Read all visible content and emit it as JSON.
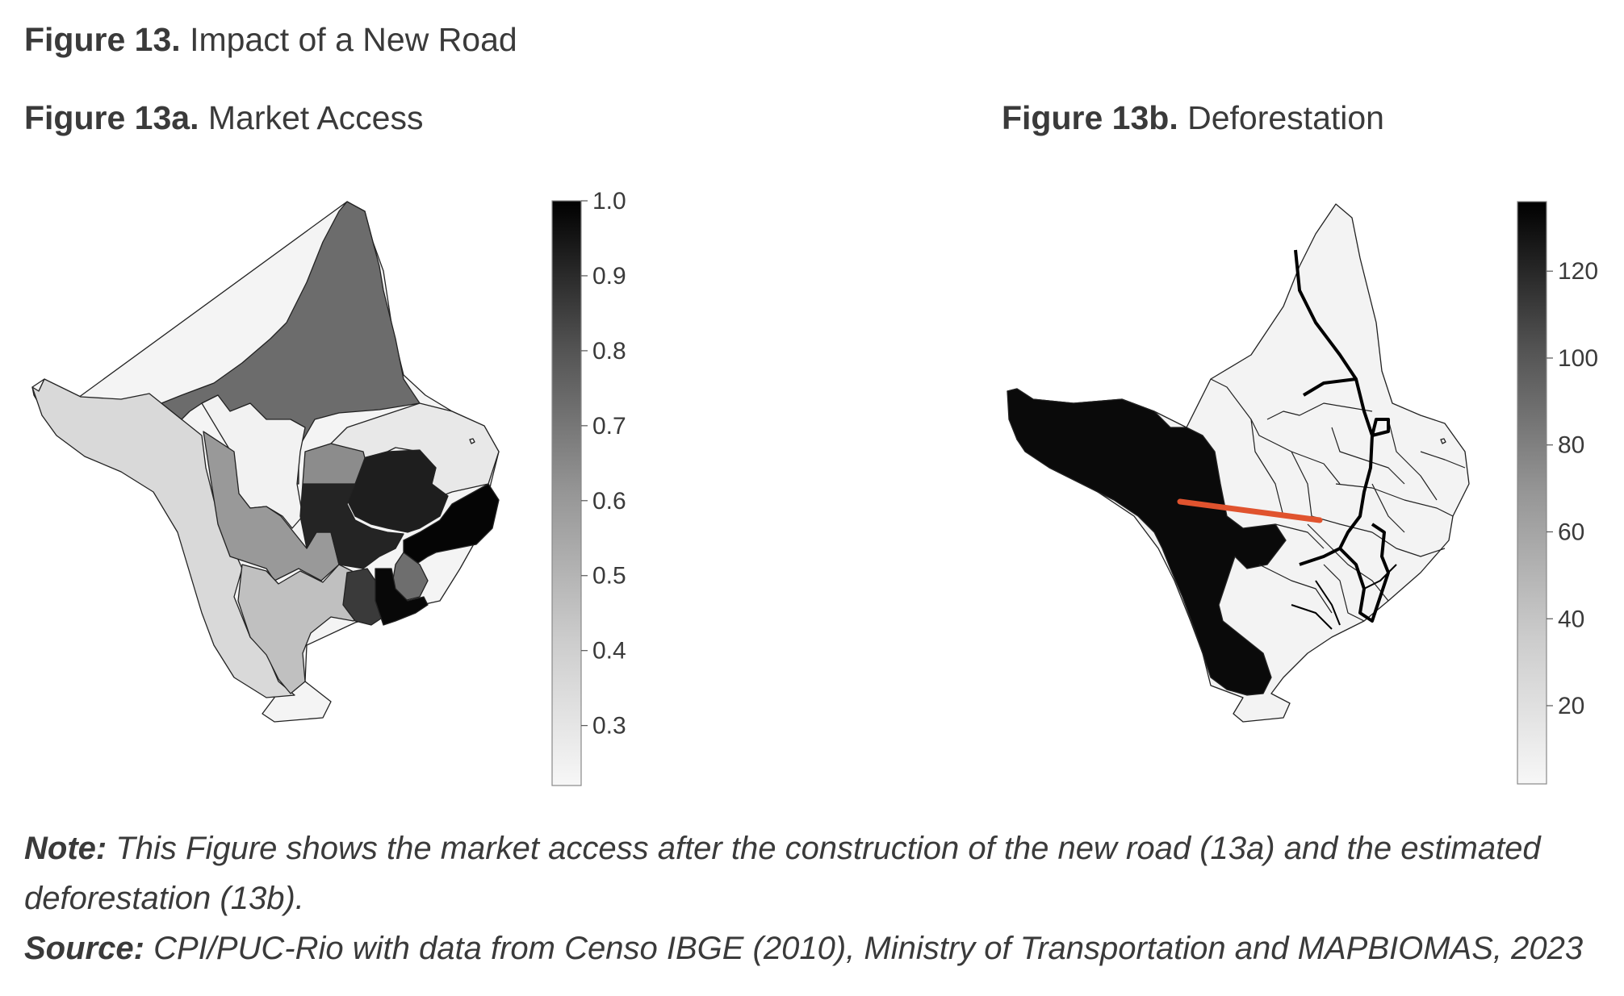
{
  "figure": {
    "number": "Figure 13.",
    "title": "Impact of a New Road"
  },
  "panel_a": {
    "number": "Figure 13a.",
    "title": "Market Access",
    "colorbar": {
      "colormap": "greys",
      "range": [
        0.22,
        1.0
      ],
      "ticks": [
        "0.3",
        "0.4",
        "0.5",
        "0.6",
        "0.7",
        "0.8",
        "0.9",
        "1.0"
      ]
    }
  },
  "panel_b": {
    "number": "Figure 13b.",
    "title": "Deforestation",
    "new_road_color": "#e0532e",
    "colorbar": {
      "colormap": "greys",
      "range": [
        2,
        136
      ],
      "ticks": [
        "20",
        "40",
        "60",
        "80",
        "100",
        "120"
      ]
    }
  },
  "note": {
    "label": "Note:",
    "line1": "This Figure shows the market access after the construction of the new road (13a) and the estimated",
    "line2": "deforestation (13b)."
  },
  "source": {
    "label": "Source:",
    "text": "CPI/PUC-Rio with data from Censo IBGE (2010), Ministry of Transportation and MAPBIOMAS, 2023"
  }
}
